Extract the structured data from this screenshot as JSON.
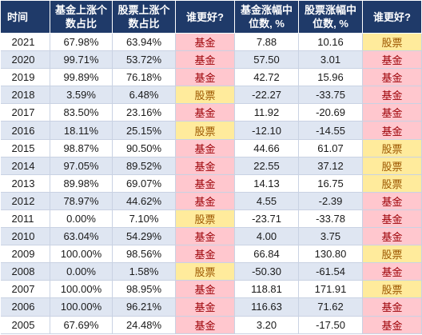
{
  "headers": [
    "时间",
    "基金上涨个数占比",
    "股票上涨个数占比",
    "谁更好?",
    "基金涨幅中位数, %",
    "股票涨幅中位数, %",
    "谁更好?"
  ],
  "rows": [
    {
      "year": "2021",
      "fund_up": "67.98%",
      "stock_up": "63.94%",
      "better1": "基金",
      "fund_med": "7.88",
      "stock_med": "10.16",
      "better2": "股票"
    },
    {
      "year": "2020",
      "fund_up": "99.71%",
      "stock_up": "53.72%",
      "better1": "基金",
      "fund_med": "57.50",
      "stock_med": "3.01",
      "better2": "基金"
    },
    {
      "year": "2019",
      "fund_up": "99.89%",
      "stock_up": "76.18%",
      "better1": "基金",
      "fund_med": "42.72",
      "stock_med": "15.96",
      "better2": "基金"
    },
    {
      "year": "2018",
      "fund_up": "3.59%",
      "stock_up": "6.48%",
      "better1": "股票",
      "fund_med": "-22.27",
      "stock_med": "-33.75",
      "better2": "基金"
    },
    {
      "year": "2017",
      "fund_up": "83.50%",
      "stock_up": "23.16%",
      "better1": "基金",
      "fund_med": "11.92",
      "stock_med": "-20.69",
      "better2": "基金"
    },
    {
      "year": "2016",
      "fund_up": "18.11%",
      "stock_up": "25.15%",
      "better1": "股票",
      "fund_med": "-12.10",
      "stock_med": "-14.55",
      "better2": "基金"
    },
    {
      "year": "2015",
      "fund_up": "98.87%",
      "stock_up": "90.50%",
      "better1": "基金",
      "fund_med": "44.66",
      "stock_med": "61.07",
      "better2": "股票"
    },
    {
      "year": "2014",
      "fund_up": "97.05%",
      "stock_up": "89.52%",
      "better1": "基金",
      "fund_med": "22.55",
      "stock_med": "37.12",
      "better2": "股票"
    },
    {
      "year": "2013",
      "fund_up": "89.98%",
      "stock_up": "69.07%",
      "better1": "基金",
      "fund_med": "14.13",
      "stock_med": "16.75",
      "better2": "股票"
    },
    {
      "year": "2012",
      "fund_up": "78.97%",
      "stock_up": "44.62%",
      "better1": "基金",
      "fund_med": "4.55",
      "stock_med": "-2.39",
      "better2": "基金"
    },
    {
      "year": "2011",
      "fund_up": "0.00%",
      "stock_up": "7.10%",
      "better1": "股票",
      "fund_med": "-23.71",
      "stock_med": "-33.78",
      "better2": "基金"
    },
    {
      "year": "2010",
      "fund_up": "63.04%",
      "stock_up": "54.29%",
      "better1": "基金",
      "fund_med": "4.00",
      "stock_med": "3.75",
      "better2": "基金"
    },
    {
      "year": "2009",
      "fund_up": "100.00%",
      "stock_up": "98.56%",
      "better1": "基金",
      "fund_med": "66.84",
      "stock_med": "130.80",
      "better2": "股票"
    },
    {
      "year": "2008",
      "fund_up": "0.00%",
      "stock_up": "1.58%",
      "better1": "股票",
      "fund_med": "-50.30",
      "stock_med": "-61.54",
      "better2": "基金"
    },
    {
      "year": "2007",
      "fund_up": "100.00%",
      "stock_up": "98.95%",
      "better1": "基金",
      "fund_med": "118.81",
      "stock_med": "171.91",
      "better2": "股票"
    },
    {
      "year": "2006",
      "fund_up": "100.00%",
      "stock_up": "96.21%",
      "better1": "基金",
      "fund_med": "116.63",
      "stock_med": "71.62",
      "better2": "基金"
    },
    {
      "year": "2005",
      "fund_up": "67.69%",
      "stock_up": "24.48%",
      "better1": "基金",
      "fund_med": "3.20",
      "stock_med": "-17.50",
      "better2": "基金"
    }
  ],
  "colors": {
    "header_bg": "#1f3a69",
    "fund_bg": "#ffc7ce",
    "fund_text": "#9c0006",
    "stock_bg": "#ffeb9c",
    "stock_text": "#9c5700",
    "band": "#dfe6f2"
  }
}
